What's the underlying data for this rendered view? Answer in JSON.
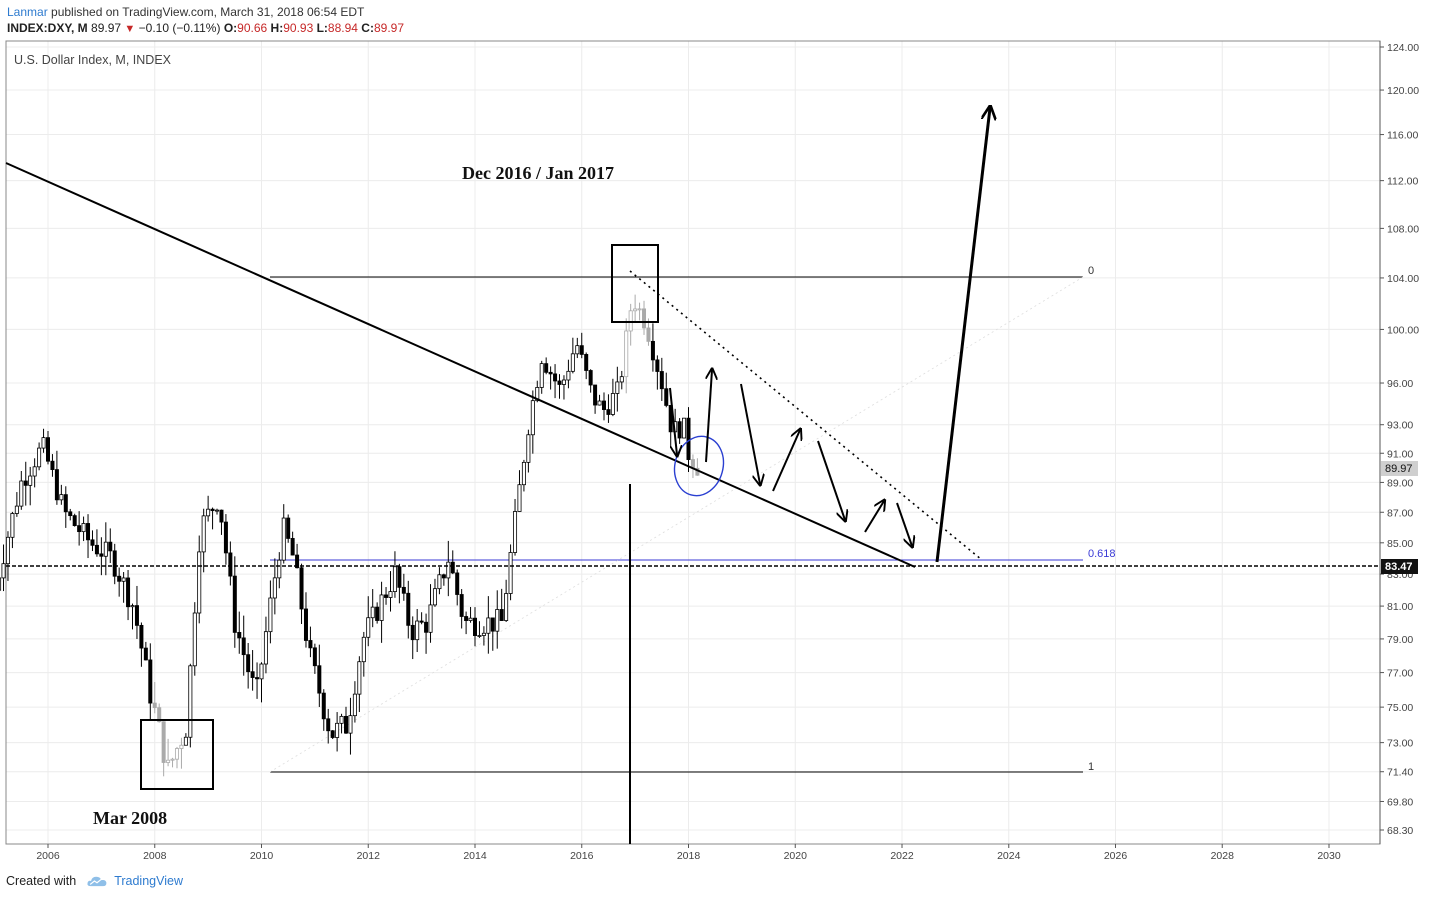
{
  "header": {
    "author": "Lanmar",
    "published_text": "published on TradingView.com, March 31, 2018 06:54 EDT",
    "symbol": "INDEX:DXY, M",
    "last": "89.97",
    "change": "−0.10 (−0.11%)",
    "o_label": "O:",
    "o_value": "90.66",
    "h_label": "H:",
    "h_value": "90.93",
    "l_label": "L:",
    "l_value": "88.94",
    "c_label": "C:",
    "c_value": "89.97"
  },
  "footer": {
    "created_with": "Created with",
    "brand": "TradingView"
  },
  "chart_data": {
    "type": "candlestick",
    "title": "U.S. Dollar Index, M, INDEX",
    "x_ticks": [
      "2006",
      "2008",
      "2010",
      "2012",
      "2014",
      "2016",
      "2018",
      "2020",
      "2022",
      "2024",
      "2026",
      "2028",
      "2030"
    ],
    "y_ticks": [
      124.0,
      120.0,
      116.0,
      112.0,
      108.0,
      104.0,
      100.0,
      96.0,
      93.0,
      91.0,
      89.0,
      87.0,
      85.0,
      83.0,
      81.0,
      79.0,
      77.0,
      75.0,
      73.0,
      71.4,
      69.8,
      68.3
    ],
    "y_scale": "log",
    "price_label_last": "89.97",
    "price_label_level": "83.47",
    "annotations": {
      "top_label": "Dec 2016 / Jan 2017",
      "bottom_label": "Mar 2008",
      "fib_0": "0",
      "fib_0618": "0.618",
      "fib_1": "1"
    },
    "colors": {
      "candle": "#000000",
      "fib_0618": "#3a3ad6",
      "highlight_ellipse": "#2a3fd1",
      "axis": "#555555",
      "grid": "#ececec"
    }
  }
}
